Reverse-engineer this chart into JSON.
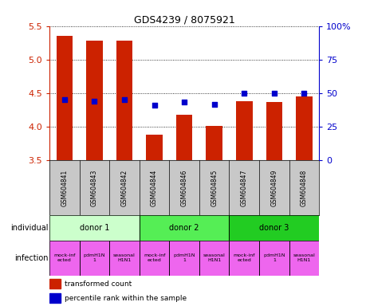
{
  "title": "GDS4239 / 8075921",
  "samples": [
    "GSM604841",
    "GSM604843",
    "GSM604842",
    "GSM604844",
    "GSM604846",
    "GSM604845",
    "GSM604847",
    "GSM604849",
    "GSM604848"
  ],
  "bar_values": [
    5.35,
    5.28,
    5.28,
    3.88,
    4.18,
    4.01,
    4.38,
    4.37,
    4.45
  ],
  "scatter_values": [
    4.41,
    4.38,
    4.4,
    4.32,
    4.37,
    4.33,
    4.5,
    4.5,
    4.5
  ],
  "ylim": [
    3.5,
    5.5
  ],
  "yticks": [
    3.5,
    4.0,
    4.5,
    5.0,
    5.5
  ],
  "right_yticks": [
    0,
    25,
    50,
    75,
    100
  ],
  "right_ylabels": [
    "0",
    "25",
    "50",
    "75",
    "100%"
  ],
  "bar_color": "#cc2200",
  "scatter_color": "#0000cc",
  "bar_width": 0.55,
  "donors": [
    {
      "label": "donor 1",
      "start": 0,
      "end": 3,
      "color": "#ccffcc"
    },
    {
      "label": "donor 2",
      "start": 3,
      "end": 6,
      "color": "#55ee55"
    },
    {
      "label": "donor 3",
      "start": 6,
      "end": 9,
      "color": "#22cc22"
    }
  ],
  "infections": [
    {
      "label": "mock-inf\nected"
    },
    {
      "label": "pdmH1N\n1"
    },
    {
      "label": "seasonal\nH1N1"
    },
    {
      "label": "mock-inf\nected"
    },
    {
      "label": "pdmH1N\n1"
    },
    {
      "label": "seasonal\nH1N1"
    },
    {
      "label": "mock-inf\nected"
    },
    {
      "label": "pdmH1N\n1"
    },
    {
      "label": "seasonal\nH1N1"
    }
  ],
  "infection_color": "#ee66ee",
  "individual_label": "individual",
  "infection_label": "infection",
  "legend_bar_label": "transformed count",
  "legend_scatter_label": "percentile rank within the sample",
  "left_axis_color": "#cc2200",
  "right_axis_color": "#0000cc",
  "bg_color": "#ffffff",
  "sample_bg_color": "#c8c8c8"
}
